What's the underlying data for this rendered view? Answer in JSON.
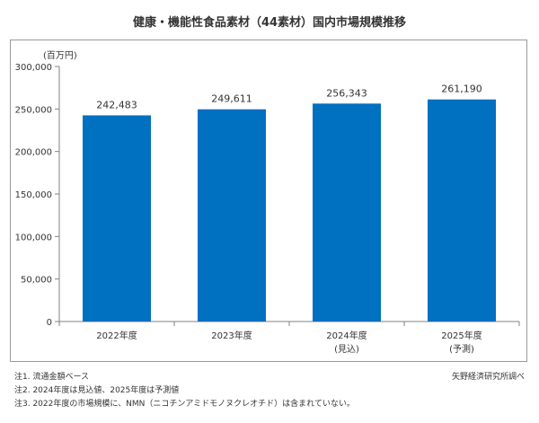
{
  "chart_data": {
    "type": "bar",
    "title": "健康・機能性食品素材（44素材）国内市場規模推移",
    "unit_label": "(百万円)",
    "categories": [
      {
        "label": "2022年度",
        "sublabel": ""
      },
      {
        "label": "2023年度",
        "sublabel": ""
      },
      {
        "label": "2024年度",
        "sublabel": "(見込)"
      },
      {
        "label": "2025年度",
        "sublabel": "(予測)"
      }
    ],
    "values": [
      242483,
      249611,
      256343,
      261190
    ],
    "data_labels": [
      "242,483",
      "249,611",
      "256,343",
      "261,190"
    ],
    "ylim": [
      0,
      300000
    ],
    "yticks": [
      {
        "value": 0,
        "label": "0"
      },
      {
        "value": 50000,
        "label": "50,000"
      },
      {
        "value": 100000,
        "label": "100,000"
      },
      {
        "value": 150000,
        "label": "150,000"
      },
      {
        "value": 200000,
        "label": "200,000"
      },
      {
        "value": 250000,
        "label": "250,000"
      },
      {
        "value": 300000,
        "label": "300,000"
      }
    ],
    "grid": false,
    "bar_color": "#0070c0"
  },
  "notes": [
    "注1. 流通金額ベース",
    "注2. 2024年度は見込値、2025年度は予測値",
    "注3. 2022年度の市場規模に、NMN（ニコチンアミドモノヌクレオチド）は含まれていない。"
  ],
  "source": "矢野経済研究所調べ"
}
